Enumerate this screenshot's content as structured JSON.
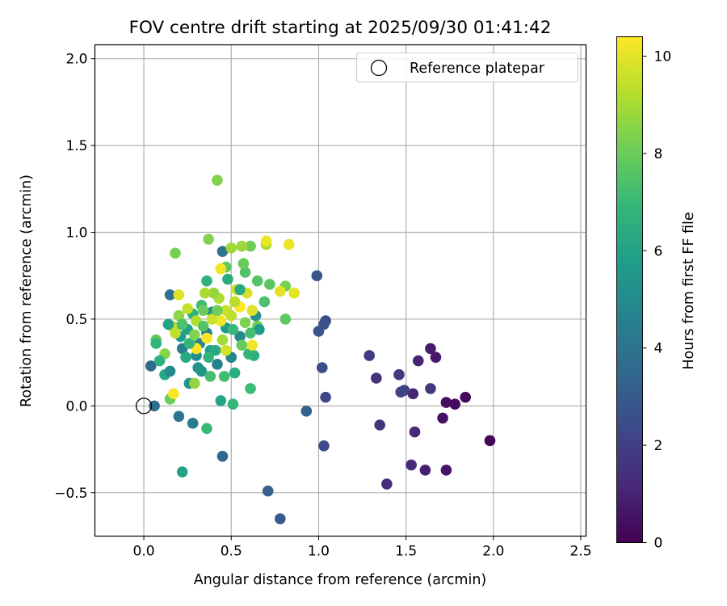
{
  "chart_data": {
    "type": "scatter",
    "title": "FOV centre drift starting at 2025/09/30 01:41:42",
    "xlabel": "Angular distance from reference (arcmin)",
    "ylabel": "Rotation from reference (arcmin)",
    "xlim": [
      -0.28,
      2.53
    ],
    "ylim": [
      -0.75,
      2.08
    ],
    "grid": true,
    "xticks": [
      0.0,
      0.5,
      1.0,
      1.5,
      2.0,
      2.5
    ],
    "xtick_labels": [
      "0.0",
      "0.5",
      "1.0",
      "1.5",
      "2.0",
      "2.5"
    ],
    "yticks": [
      -0.5,
      0.0,
      0.5,
      1.0,
      1.5,
      2.0
    ],
    "ytick_labels": [
      "−0.5",
      "0.0",
      "0.5",
      "1.0",
      "1.5",
      "2.0"
    ],
    "legend": {
      "label": "Reference platepar",
      "placement": "top-right",
      "marker": "open-circle"
    },
    "reference_point": {
      "x": 0.0,
      "y": 0.0
    },
    "colorbar": {
      "label": "Hours from first FF file",
      "colormap": "viridis",
      "range": [
        0,
        10.4
      ],
      "ticks": [
        0,
        2,
        4,
        6,
        8,
        10
      ],
      "tick_labels": [
        "0",
        "2",
        "4",
        "6",
        "8",
        "10"
      ]
    },
    "colormap_stops": [
      "#440154",
      "#482878",
      "#3e4989",
      "#31688e",
      "#26828e",
      "#1f9e89",
      "#35b779",
      "#6ece58",
      "#b5de2b",
      "#fde725"
    ],
    "points": [
      {
        "x": 1.98,
        "y": -0.2,
        "h": 0.1
      },
      {
        "x": 1.84,
        "y": 0.05,
        "h": 0.2
      },
      {
        "x": 1.78,
        "y": 0.01,
        "h": 0.3
      },
      {
        "x": 1.73,
        "y": 0.02,
        "h": 0.4
      },
      {
        "x": 1.71,
        "y": -0.07,
        "h": 0.5
      },
      {
        "x": 1.73,
        "y": -0.37,
        "h": 0.6
      },
      {
        "x": 1.67,
        "y": 0.28,
        "h": 0.7
      },
      {
        "x": 1.64,
        "y": 0.33,
        "h": 0.8
      },
      {
        "x": 1.61,
        "y": -0.37,
        "h": 0.9
      },
      {
        "x": 1.57,
        "y": 0.26,
        "h": 1.0
      },
      {
        "x": 1.54,
        "y": 0.07,
        "h": 1.1
      },
      {
        "x": 1.55,
        "y": -0.15,
        "h": 1.2
      },
      {
        "x": 1.53,
        "y": -0.34,
        "h": 1.3
      },
      {
        "x": 1.39,
        "y": -0.45,
        "h": 1.4
      },
      {
        "x": 1.33,
        "y": 0.16,
        "h": 1.5
      },
      {
        "x": 1.35,
        "y": -0.11,
        "h": 1.6
      },
      {
        "x": 1.64,
        "y": 0.1,
        "h": 1.7
      },
      {
        "x": 1.46,
        "y": 0.18,
        "h": 1.8
      },
      {
        "x": 1.29,
        "y": 0.29,
        "h": 1.9
      },
      {
        "x": 1.49,
        "y": 0.09,
        "h": 2.0
      },
      {
        "x": 1.47,
        "y": 0.08,
        "h": 2.1
      },
      {
        "x": 1.04,
        "y": 0.05,
        "h": 2.2
      },
      {
        "x": 1.03,
        "y": -0.23,
        "h": 2.3
      },
      {
        "x": 1.04,
        "y": 0.49,
        "h": 2.4
      },
      {
        "x": 1.02,
        "y": 0.22,
        "h": 2.5
      },
      {
        "x": 1.03,
        "y": 0.47,
        "h": 2.6
      },
      {
        "x": 1.0,
        "y": 0.43,
        "h": 2.7
      },
      {
        "x": 0.99,
        "y": 0.75,
        "h": 2.8
      },
      {
        "x": 0.78,
        "y": -0.65,
        "h": 3.0
      },
      {
        "x": 0.71,
        "y": -0.49,
        "h": 3.2
      },
      {
        "x": 0.93,
        "y": -0.03,
        "h": 3.3
      },
      {
        "x": 0.45,
        "y": -0.29,
        "h": 3.5
      },
      {
        "x": 0.04,
        "y": 0.23,
        "h": 3.6
      },
      {
        "x": 0.06,
        "y": 0.0,
        "h": 3.7
      },
      {
        "x": 0.15,
        "y": 0.64,
        "h": 3.8
      },
      {
        "x": 0.45,
        "y": 0.89,
        "h": 3.9
      },
      {
        "x": 0.2,
        "y": -0.06,
        "h": 4.1
      },
      {
        "x": 0.28,
        "y": -0.1,
        "h": 4.3
      },
      {
        "x": 0.22,
        "y": 0.33,
        "h": 4.4
      },
      {
        "x": 0.36,
        "y": 0.42,
        "h": 4.5
      },
      {
        "x": 0.42,
        "y": 0.24,
        "h": 4.6
      },
      {
        "x": 0.32,
        "y": 0.36,
        "h": 4.7
      },
      {
        "x": 0.5,
        "y": 0.28,
        "h": 4.8
      },
      {
        "x": 0.55,
        "y": 0.4,
        "h": 4.9
      },
      {
        "x": 0.39,
        "y": 0.54,
        "h": 5.0
      },
      {
        "x": 0.3,
        "y": 0.29,
        "h": 5.1
      },
      {
        "x": 0.64,
        "y": 0.52,
        "h": 5.2
      },
      {
        "x": 0.18,
        "y": 0.45,
        "h": 5.3
      },
      {
        "x": 0.26,
        "y": 0.13,
        "h": 5.4
      },
      {
        "x": 0.33,
        "y": 0.2,
        "h": 5.5
      },
      {
        "x": 0.21,
        "y": 0.4,
        "h": 5.6
      },
      {
        "x": 0.47,
        "y": 0.45,
        "h": 5.7
      },
      {
        "x": 0.38,
        "y": 0.32,
        "h": 5.8
      },
      {
        "x": 0.25,
        "y": 0.44,
        "h": 5.9
      },
      {
        "x": 0.22,
        "y": -0.38,
        "h": 6.0
      },
      {
        "x": 0.44,
        "y": 0.03,
        "h": 6.1
      },
      {
        "x": 0.12,
        "y": 0.18,
        "h": 6.2
      },
      {
        "x": 0.41,
        "y": 0.32,
        "h": 6.3
      },
      {
        "x": 0.52,
        "y": 0.19,
        "h": 6.4
      },
      {
        "x": 0.63,
        "y": 0.29,
        "h": 6.5
      },
      {
        "x": 0.36,
        "y": 0.72,
        "h": 6.6
      },
      {
        "x": 0.28,
        "y": 0.53,
        "h": 6.7
      },
      {
        "x": 0.6,
        "y": 0.3,
        "h": 6.8
      },
      {
        "x": 0.51,
        "y": 0.01,
        "h": 6.9
      },
      {
        "x": 0.36,
        "y": -0.13,
        "h": 7.0
      },
      {
        "x": 0.61,
        "y": 0.1,
        "h": 7.1
      },
      {
        "x": 0.46,
        "y": 0.17,
        "h": 7.2
      },
      {
        "x": 0.38,
        "y": 0.17,
        "h": 7.3
      },
      {
        "x": 0.69,
        "y": 0.6,
        "h": 7.4
      },
      {
        "x": 0.58,
        "y": 0.77,
        "h": 7.5
      },
      {
        "x": 0.65,
        "y": 0.72,
        "h": 7.6
      },
      {
        "x": 0.72,
        "y": 0.7,
        "h": 7.7
      },
      {
        "x": 0.81,
        "y": 0.5,
        "h": 7.8
      },
      {
        "x": 0.07,
        "y": 0.38,
        "h": 7.9
      },
      {
        "x": 0.15,
        "y": 0.04,
        "h": 8.0
      },
      {
        "x": 0.57,
        "y": 0.82,
        "h": 8.0
      },
      {
        "x": 0.65,
        "y": 0.46,
        "h": 8.1
      },
      {
        "x": 0.61,
        "y": 0.92,
        "h": 8.1
      },
      {
        "x": 0.81,
        "y": 0.69,
        "h": 8.2
      },
      {
        "x": 0.18,
        "y": 0.88,
        "h": 8.2
      },
      {
        "x": 0.42,
        "y": 1.3,
        "h": 8.4
      },
      {
        "x": 0.37,
        "y": 0.96,
        "h": 8.4
      },
      {
        "x": 0.12,
        "y": 0.3,
        "h": 8.5
      },
      {
        "x": 0.2,
        "y": 0.52,
        "h": 8.6
      },
      {
        "x": 0.29,
        "y": 0.13,
        "h": 8.7
      },
      {
        "x": 0.56,
        "y": 0.92,
        "h": 8.8
      },
      {
        "x": 0.5,
        "y": 0.91,
        "h": 8.9
      },
      {
        "x": 0.7,
        "y": 0.93,
        "h": 9.0
      },
      {
        "x": 0.43,
        "y": 0.62,
        "h": 9.1
      },
      {
        "x": 0.3,
        "y": 0.49,
        "h": 9.2
      },
      {
        "x": 0.16,
        "y": 0.46,
        "h": 9.3
      },
      {
        "x": 0.18,
        "y": 0.42,
        "h": 9.4
      },
      {
        "x": 0.25,
        "y": 0.56,
        "h": 9.5
      },
      {
        "x": 0.47,
        "y": 0.55,
        "h": 9.6
      },
      {
        "x": 0.53,
        "y": 0.67,
        "h": 9.7
      },
      {
        "x": 0.59,
        "y": 0.65,
        "h": 9.8
      },
      {
        "x": 0.2,
        "y": 0.64,
        "h": 9.9
      },
      {
        "x": 0.86,
        "y": 0.65,
        "h": 10.0
      },
      {
        "x": 0.78,
        "y": 0.66,
        "h": 10.0
      },
      {
        "x": 0.83,
        "y": 0.93,
        "h": 10.1
      },
      {
        "x": 0.7,
        "y": 0.95,
        "h": 10.1
      },
      {
        "x": 0.62,
        "y": 0.35,
        "h": 10.2
      },
      {
        "x": 0.44,
        "y": 0.49,
        "h": 10.2
      },
      {
        "x": 0.36,
        "y": 0.39,
        "h": 10.3
      },
      {
        "x": 0.17,
        "y": 0.07,
        "h": 10.3
      },
      {
        "x": 0.3,
        "y": 0.33,
        "h": 10.4
      },
      {
        "x": 0.55,
        "y": 0.57,
        "h": 10.4
      },
      {
        "x": 0.14,
        "y": 0.47,
        "h": 5.9
      },
      {
        "x": 0.33,
        "y": 0.58,
        "h": 7.2
      },
      {
        "x": 0.4,
        "y": 0.65,
        "h": 8.7
      },
      {
        "x": 0.47,
        "y": 0.8,
        "h": 7.8
      },
      {
        "x": 0.52,
        "y": 0.6,
        "h": 9.3
      },
      {
        "x": 0.24,
        "y": 0.28,
        "h": 6.2
      },
      {
        "x": 0.34,
        "y": 0.46,
        "h": 7.6
      },
      {
        "x": 0.45,
        "y": 0.38,
        "h": 8.9
      },
      {
        "x": 0.58,
        "y": 0.48,
        "h": 8.3
      },
      {
        "x": 0.26,
        "y": 0.36,
        "h": 6.9
      },
      {
        "x": 0.39,
        "y": 0.5,
        "h": 9.6
      },
      {
        "x": 0.48,
        "y": 0.73,
        "h": 6.4
      },
      {
        "x": 0.62,
        "y": 0.55,
        "h": 9.9
      },
      {
        "x": 0.09,
        "y": 0.26,
        "h": 6.6
      },
      {
        "x": 0.31,
        "y": 0.22,
        "h": 5.3
      },
      {
        "x": 0.42,
        "y": 0.55,
        "h": 8.1
      },
      {
        "x": 0.56,
        "y": 0.35,
        "h": 7.9
      },
      {
        "x": 0.22,
        "y": 0.47,
        "h": 7.4
      },
      {
        "x": 0.37,
        "y": 0.28,
        "h": 6.7
      },
      {
        "x": 0.44,
        "y": 0.79,
        "h": 10.2
      },
      {
        "x": 0.51,
        "y": 0.44,
        "h": 7.0
      },
      {
        "x": 0.66,
        "y": 0.44,
        "h": 5.6
      },
      {
        "x": 0.29,
        "y": 0.41,
        "h": 8.4
      },
      {
        "x": 0.35,
        "y": 0.65,
        "h": 9.1
      },
      {
        "x": 0.55,
        "y": 0.67,
        "h": 6.3
      },
      {
        "x": 0.47,
        "y": 0.32,
        "h": 9.7
      },
      {
        "x": 0.61,
        "y": 0.42,
        "h": 7.3
      },
      {
        "x": 0.15,
        "y": 0.2,
        "h": 5.0
      },
      {
        "x": 0.07,
        "y": 0.36,
        "h": 6.8
      },
      {
        "x": 0.34,
        "y": 0.55,
        "h": 8.0
      },
      {
        "x": 0.5,
        "y": 0.52,
        "h": 9.4
      }
    ]
  }
}
